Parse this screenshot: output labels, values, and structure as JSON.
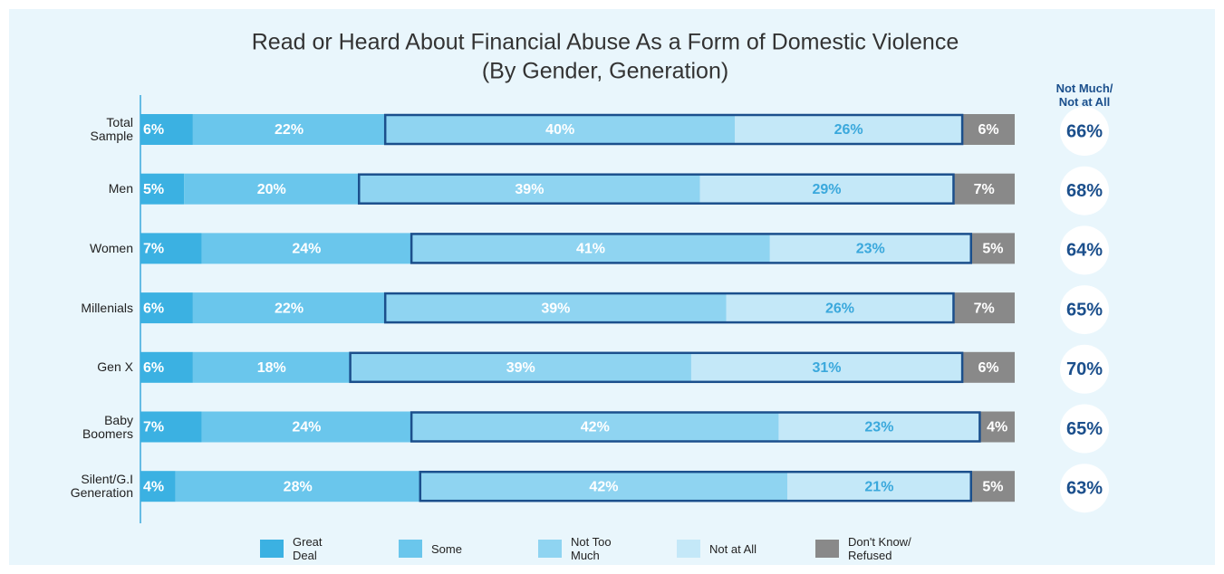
{
  "chart_data": {
    "type": "stacked_bar_horizontal",
    "title": "Read or Heard About Financial Abuse As a Form of Domestic Violence",
    "subtitle": "(By Gender, Generation)",
    "categories": [
      "Total\nSample",
      "Men",
      "Women",
      "Millenials",
      "Gen X",
      "Baby\nBoomers",
      "Silent/G.I\nGeneration"
    ],
    "xlim": [
      0,
      100
    ],
    "series": [
      {
        "name": "Great\nDeal",
        "color": "#3bb1e2",
        "label_color": "#ffffff",
        "values": [
          6,
          5,
          7,
          6,
          6,
          7,
          4
        ],
        "value_labels": [
          "6%",
          "5%",
          "7%",
          "6%",
          "6%",
          "7%",
          "4%"
        ]
      },
      {
        "name": "Some",
        "color": "#6ac6ec",
        "label_color": "#ffffff",
        "values": [
          22,
          20,
          24,
          22,
          18,
          24,
          28
        ],
        "value_labels": [
          "22%",
          "20%",
          "24%",
          "22%",
          "18%",
          "24%",
          "28%"
        ]
      },
      {
        "name": "Not Too\nMuch",
        "color": "#8fd4f1",
        "label_color": "#ffffff",
        "values": [
          40,
          39,
          41,
          39,
          39,
          42,
          42
        ],
        "value_labels": [
          "40%",
          "39%",
          "41%",
          "39%",
          "39%",
          "42%",
          "42%"
        ]
      },
      {
        "name": "Not at All",
        "color": "#c4e8f8",
        "label_color": "#3aa8dc",
        "values": [
          26,
          29,
          23,
          26,
          31,
          23,
          21
        ],
        "value_labels": [
          "26%",
          "29%",
          "23%",
          "26%",
          "31%",
          "23%",
          "21%"
        ]
      },
      {
        "name": "Don't Know/\nRefused",
        "color": "#898989",
        "label_color": "#ffffff",
        "values": [
          6,
          7,
          5,
          7,
          6,
          4,
          5
        ],
        "value_labels": [
          "6%",
          "7%",
          "5%",
          "7%",
          "6%",
          "4%",
          "5%"
        ]
      }
    ],
    "net": {
      "title": "Not Much/\nNot at All",
      "values": [
        66,
        68,
        64,
        65,
        70,
        65,
        63
      ],
      "value_labels": [
        "66%",
        "68%",
        "64%",
        "65%",
        "70%",
        "65%",
        "63%"
      ],
      "color": "#1b4f8c"
    }
  }
}
